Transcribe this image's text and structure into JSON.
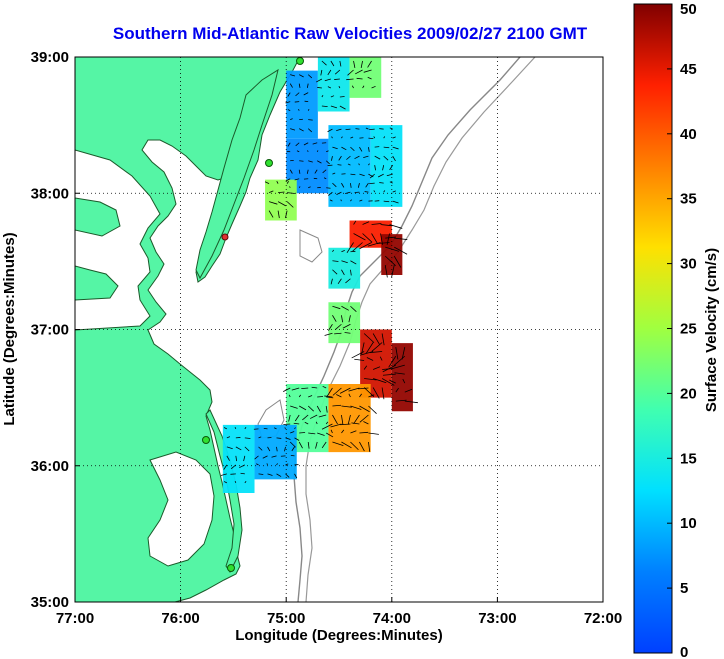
{
  "title": "Southern Mid-Atlantic Raw Velocities 2009/02/27 2100 GMT",
  "chart_data": {
    "type": "heatmap",
    "x_axis": {
      "label": "Longitude (Degrees:Minutes)",
      "range": [
        -77,
        -72
      ],
      "ticks": [
        {
          "value": -77,
          "label": "77:00"
        },
        {
          "value": -76,
          "label": "76:00"
        },
        {
          "value": -75,
          "label": "75:00"
        },
        {
          "value": -74,
          "label": "74:00"
        },
        {
          "value": -73,
          "label": "73:00"
        },
        {
          "value": -72,
          "label": "72:00"
        }
      ]
    },
    "y_axis": {
      "label": "Latitude (Degrees:Minutes)",
      "range": [
        35,
        39
      ],
      "ticks": [
        {
          "value": 35,
          "label": "35:00"
        },
        {
          "value": 36,
          "label": "36:00"
        },
        {
          "value": 37,
          "label": "37:00"
        },
        {
          "value": 38,
          "label": "38:00"
        },
        {
          "value": 39,
          "label": "39:00"
        }
      ]
    },
    "grid": true,
    "colorbar": {
      "label": "Surface Velocity (cm/s)",
      "range": [
        0,
        50
      ],
      "ticks": [
        {
          "value": 0,
          "label": "0"
        },
        {
          "value": 5,
          "label": "5"
        },
        {
          "value": 10,
          "label": "10"
        },
        {
          "value": 15,
          "label": "15"
        },
        {
          "value": 20,
          "label": "20"
        },
        {
          "value": 25,
          "label": "25"
        },
        {
          "value": 30,
          "label": "30"
        },
        {
          "value": 35,
          "label": "35"
        },
        {
          "value": 40,
          "label": "40"
        },
        {
          "value": 45,
          "label": "45"
        },
        {
          "value": 50,
          "label": "50"
        }
      ],
      "colormap": "jet",
      "placement": "right"
    },
    "velocity_regions": [
      {
        "lon": [
          -75.0,
          -74.7
        ],
        "lat": [
          38.4,
          38.9
        ],
        "speed": 8
      },
      {
        "lon": [
          -74.7,
          -74.4
        ],
        "lat": [
          38.6,
          39.0
        ],
        "speed": 14
      },
      {
        "lon": [
          -74.4,
          -74.1
        ],
        "lat": [
          38.7,
          39.0
        ],
        "speed": 22
      },
      {
        "lon": [
          -75.0,
          -74.6
        ],
        "lat": [
          38.0,
          38.4
        ],
        "speed": 7
      },
      {
        "lon": [
          -74.6,
          -74.2
        ],
        "lat": [
          37.9,
          38.5
        ],
        "speed": 10
      },
      {
        "lon": [
          -74.2,
          -73.9
        ],
        "lat": [
          37.9,
          38.5
        ],
        "speed": 13
      },
      {
        "lon": [
          -75.2,
          -74.9
        ],
        "lat": [
          37.8,
          38.1
        ],
        "speed": 24
      },
      {
        "lon": [
          -74.4,
          -74.0
        ],
        "lat": [
          37.6,
          37.8
        ],
        "speed": 44
      },
      {
        "lon": [
          -74.1,
          -73.9
        ],
        "lat": [
          37.4,
          37.7
        ],
        "speed": 49
      },
      {
        "lon": [
          -74.6,
          -74.3
        ],
        "lat": [
          36.9,
          37.2
        ],
        "speed": 22
      },
      {
        "lon": [
          -74.3,
          -74.0
        ],
        "lat": [
          36.5,
          37.0
        ],
        "speed": 46
      },
      {
        "lon": [
          -74.0,
          -73.8
        ],
        "lat": [
          36.4,
          36.9
        ],
        "speed": 49
      },
      {
        "lon": [
          -74.6,
          -74.2
        ],
        "lat": [
          36.1,
          36.6
        ],
        "speed": 36
      },
      {
        "lon": [
          -75.0,
          -74.6
        ],
        "lat": [
          36.1,
          36.6
        ],
        "speed": 20
      },
      {
        "lon": [
          -75.3,
          -74.9
        ],
        "lat": [
          35.9,
          36.3
        ],
        "speed": 9
      },
      {
        "lon": [
          -75.6,
          -75.3
        ],
        "lat": [
          35.8,
          36.3
        ],
        "speed": 13
      },
      {
        "lon": [
          -74.6,
          -74.3
        ],
        "lat": [
          37.3,
          37.6
        ],
        "speed": 15
      }
    ]
  }
}
